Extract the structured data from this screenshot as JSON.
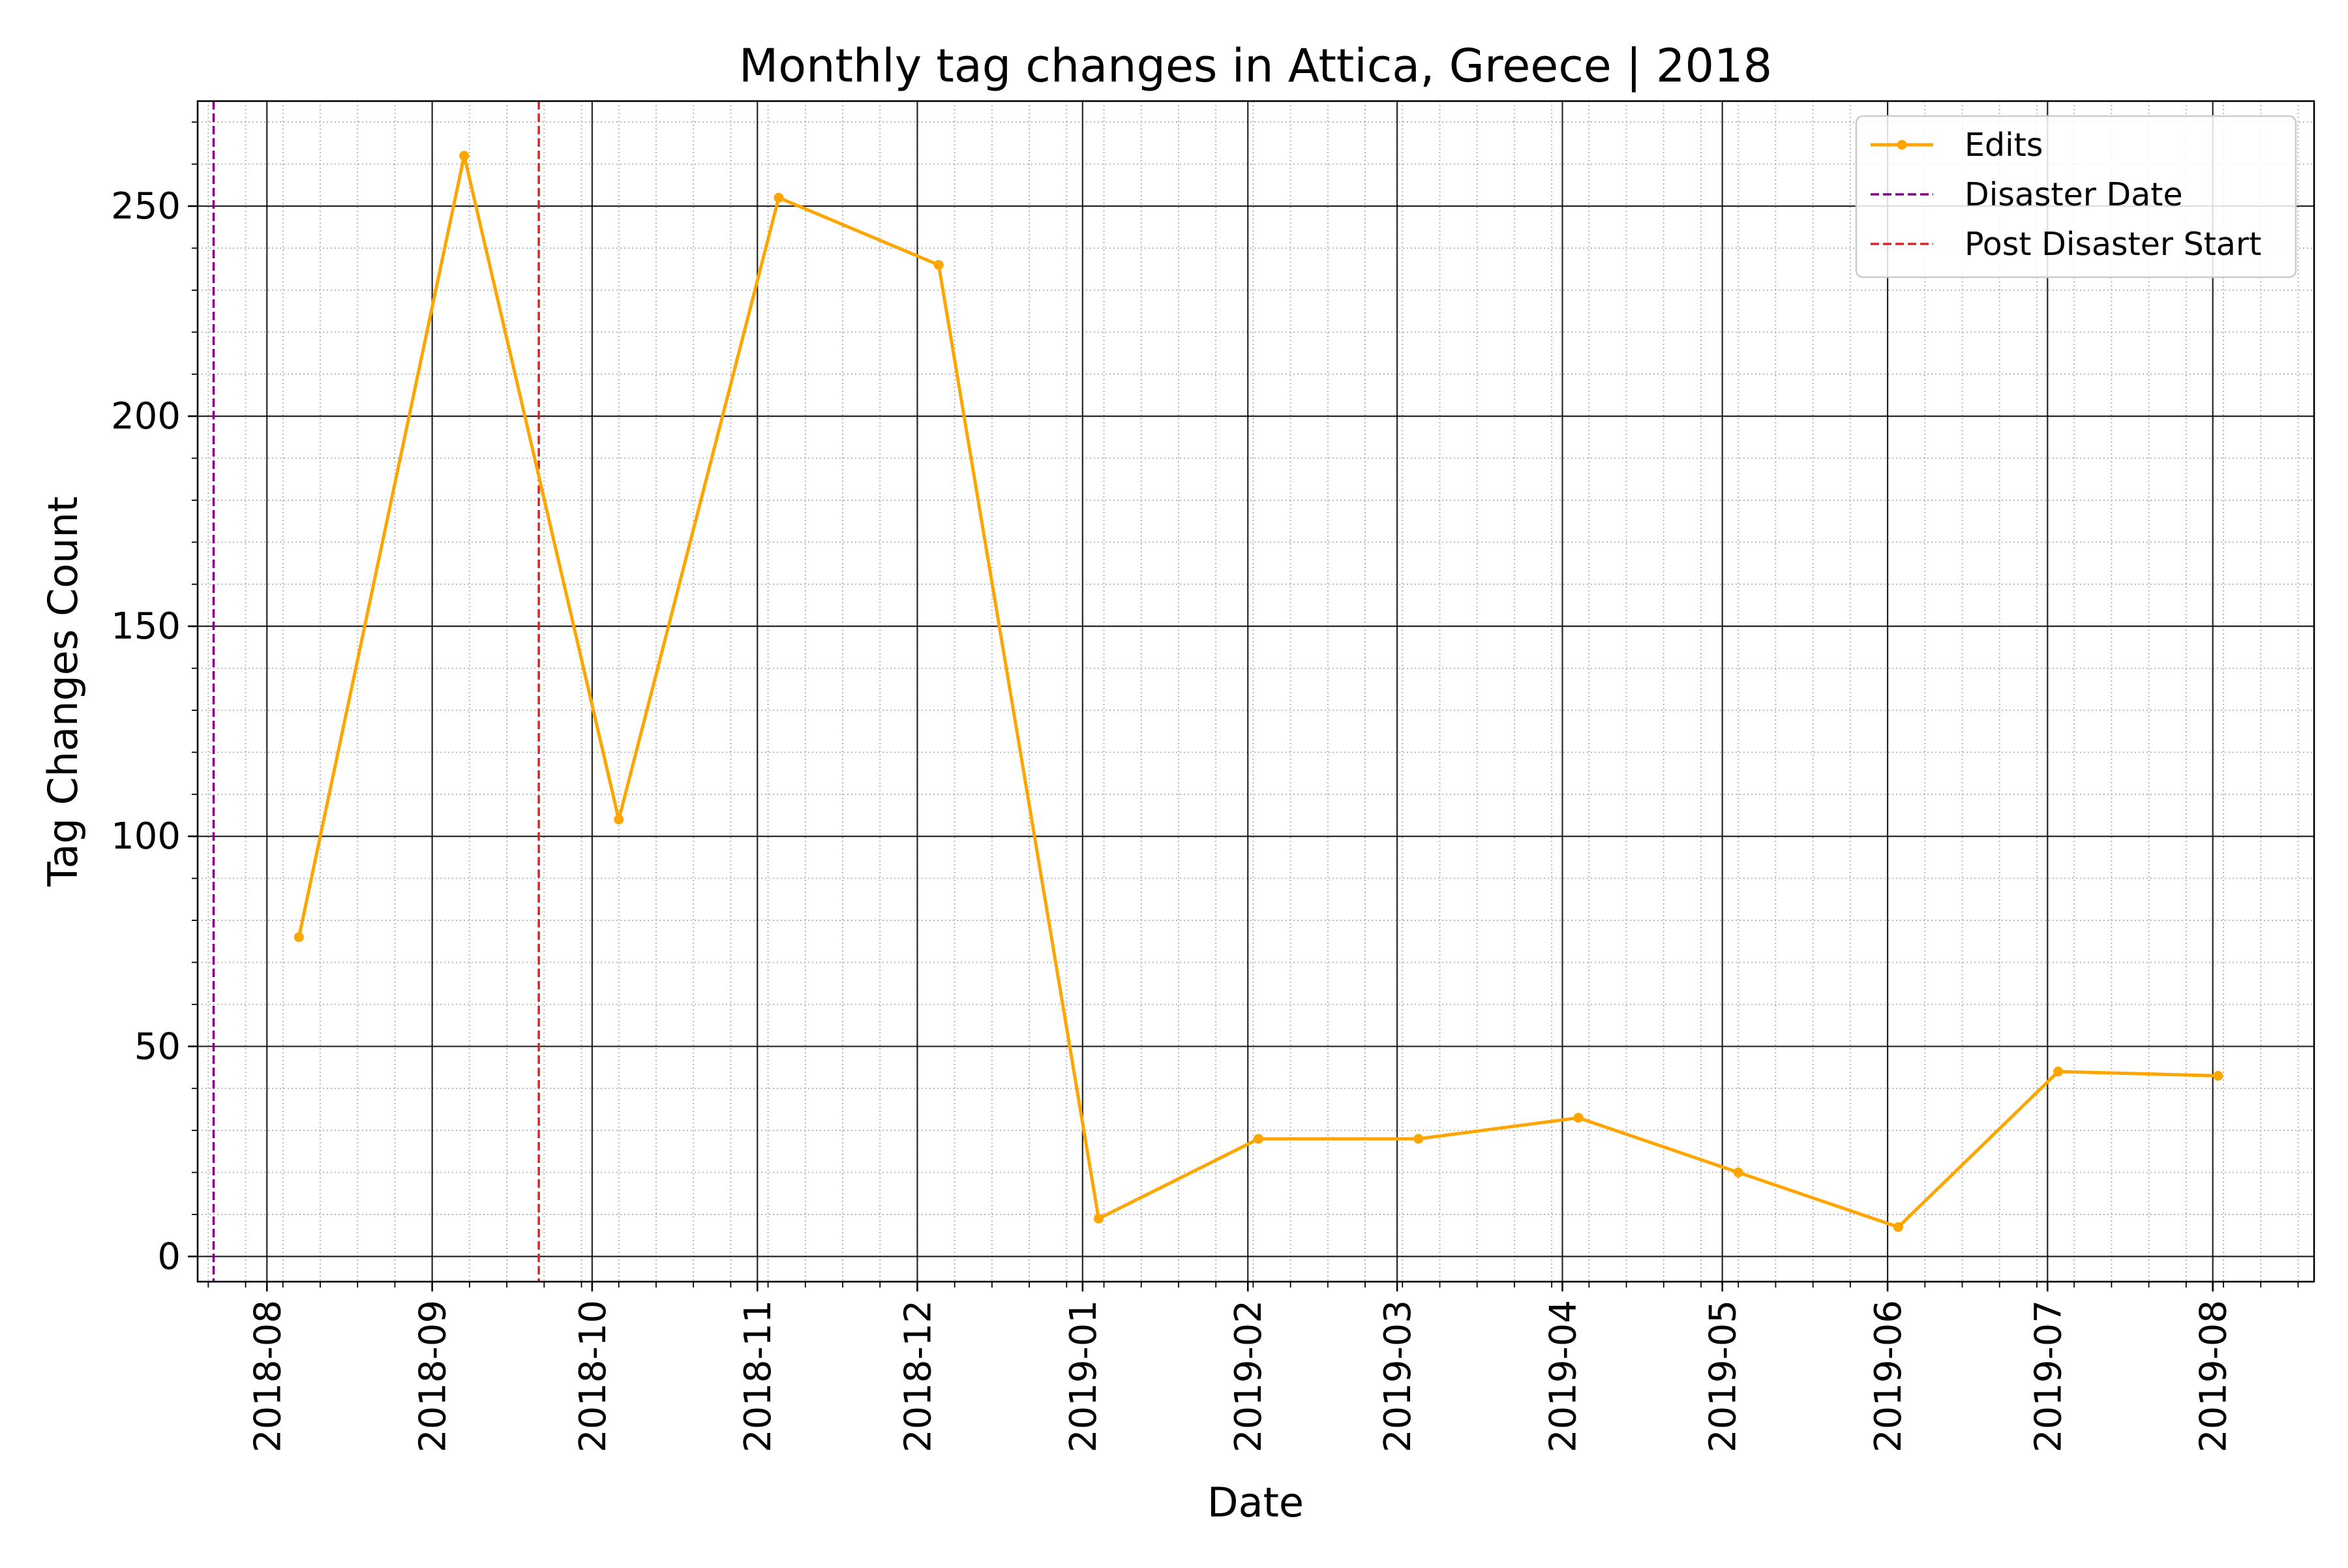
{
  "chart_data": {
    "type": "line",
    "title": "Monthly tag changes in Attica, Greece | 2018",
    "xlabel": "Date",
    "ylabel": "Tag Changes Count",
    "x_range": [
      "2018-07-19",
      "2019-08-20"
    ],
    "ylim": [
      -6,
      275
    ],
    "y_ticks": [
      0,
      50,
      100,
      150,
      200,
      250
    ],
    "x_ticks": [
      "2018-08-01",
      "2018-09-01",
      "2018-10-01",
      "2018-11-01",
      "2018-12-01",
      "2019-01-01",
      "2019-02-01",
      "2019-03-01",
      "2019-04-01",
      "2019-05-01",
      "2019-06-01",
      "2019-07-01",
      "2019-08-01"
    ],
    "x_tick_labels": [
      "2018-08",
      "2018-09",
      "2018-10",
      "2018-11",
      "2018-12",
      "2019-01",
      "2019-02",
      "2019-03",
      "2019-04",
      "2019-05",
      "2019-06",
      "2019-07",
      "2019-08"
    ],
    "grid": "major solid, minor dotted",
    "legend_position": "top-right",
    "series": [
      {
        "name": "Edits",
        "color": "#ffa500",
        "marker": "dot",
        "points": [
          {
            "x": "2018-08-07",
            "y": 76
          },
          {
            "x": "2018-09-07",
            "y": 262
          },
          {
            "x": "2018-10-06",
            "y": 104
          },
          {
            "x": "2018-11-05",
            "y": 252
          },
          {
            "x": "2018-12-05",
            "y": 236
          },
          {
            "x": "2019-01-04",
            "y": 9
          },
          {
            "x": "2019-02-03",
            "y": 28
          },
          {
            "x": "2019-03-05",
            "y": 28
          },
          {
            "x": "2019-04-04",
            "y": 33
          },
          {
            "x": "2019-05-04",
            "y": 20
          },
          {
            "x": "2019-06-03",
            "y": 7
          },
          {
            "x": "2019-07-03",
            "y": 44
          },
          {
            "x": "2019-08-02",
            "y": 43
          }
        ]
      }
    ],
    "vlines": [
      {
        "name": "Disaster Date",
        "x": "2018-07-22",
        "color": "#800080",
        "style": "dashed"
      },
      {
        "name": "Post Disaster Start",
        "x": "2018-09-21",
        "color": "#d62728",
        "style": "dashed"
      }
    ]
  }
}
